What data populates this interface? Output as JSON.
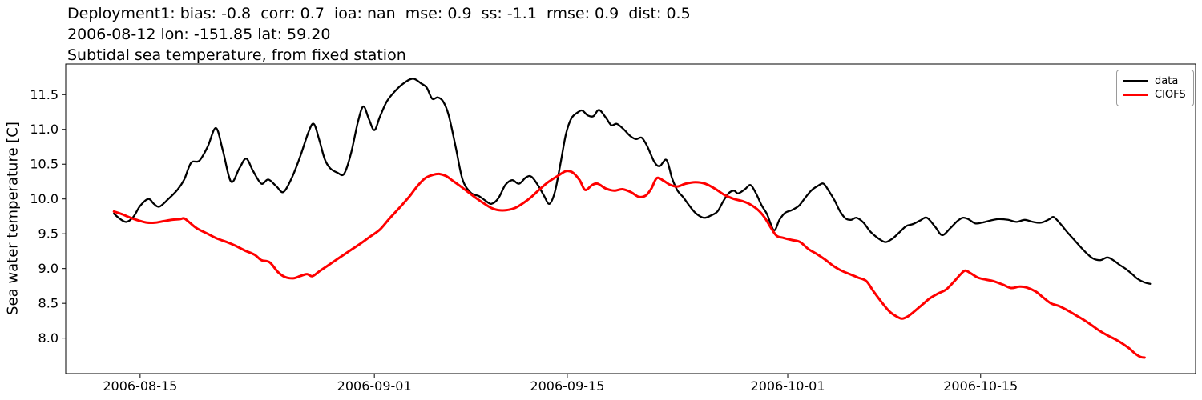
{
  "title": {
    "line1": "Deployment1: bias: -0.8  corr: 0.7  ioa: nan  mse: 0.9  ss: -1.1  rmse: 0.9  dist: 0.5",
    "line2": "2006-08-12 lon: -151.85 lat: 59.20",
    "line3": "Subtidal sea temperature, from fixed station"
  },
  "legend": {
    "entries": [
      {
        "label": "data",
        "color": "#000000",
        "linewidth": 2.3
      },
      {
        "label": "CIOFS",
        "color": "#ff0000",
        "linewidth": 3.0
      }
    ]
  },
  "colors": {
    "background": "#ffffff",
    "frame": "#000000",
    "tick": "#000000",
    "data_line": "#000000",
    "model_line": "#ff0000",
    "legend_border": "#9a9a9a"
  },
  "chart_data": {
    "type": "line",
    "title": "Subtidal sea temperature, from fixed station",
    "stats_header": "Deployment1: bias: -0.8  corr: 0.7  ioa: nan  mse: 0.9  ss: -1.1  rmse: 0.9  dist: 0.5",
    "station_header": "2006-08-12 lon: -151.85 lat: 59.20",
    "xlabel": "",
    "ylabel": "Sea water temperature [C]",
    "x_unit": "days since 2006-08-12",
    "grid": false,
    "legend_position": "upper right",
    "xlim": [
      -2.4,
      79.6
    ],
    "ylim": [
      7.49,
      11.94
    ],
    "x_ticks": [
      {
        "day": 3,
        "label": "2006-08-15"
      },
      {
        "day": 20,
        "label": "2006-09-01"
      },
      {
        "day": 34,
        "label": "2006-09-15"
      },
      {
        "day": 50,
        "label": "2006-10-01"
      },
      {
        "day": 64,
        "label": "2006-10-15"
      }
    ],
    "y_ticks": [
      {
        "value": 8.0,
        "label": "8.0"
      },
      {
        "value": 8.5,
        "label": "8.5"
      },
      {
        "value": 9.0,
        "label": "9.0"
      },
      {
        "value": 9.5,
        "label": "9.5"
      },
      {
        "value": 10.0,
        "label": "10.0"
      },
      {
        "value": 10.5,
        "label": "10.5"
      },
      {
        "value": 11.0,
        "label": "11.0"
      },
      {
        "value": 11.5,
        "label": "11.5"
      }
    ],
    "series": [
      {
        "name": "data",
        "color": "#000000",
        "linewidth": 2.3,
        "points": [
          [
            1.1,
            9.79
          ],
          [
            1.5,
            9.72
          ],
          [
            2.0,
            9.67
          ],
          [
            2.5,
            9.74
          ],
          [
            3.0,
            9.9
          ],
          [
            3.6,
            10.0
          ],
          [
            4.0,
            9.93
          ],
          [
            4.4,
            9.89
          ],
          [
            5.0,
            9.99
          ],
          [
            5.7,
            10.13
          ],
          [
            6.2,
            10.28
          ],
          [
            6.7,
            10.52
          ],
          [
            7.3,
            10.55
          ],
          [
            7.9,
            10.75
          ],
          [
            8.5,
            11.02
          ],
          [
            9.0,
            10.7
          ],
          [
            9.6,
            10.25
          ],
          [
            10.2,
            10.44
          ],
          [
            10.7,
            10.58
          ],
          [
            11.2,
            10.4
          ],
          [
            11.8,
            10.22
          ],
          [
            12.3,
            10.28
          ],
          [
            12.9,
            10.18
          ],
          [
            13.4,
            10.1
          ],
          [
            14.0,
            10.3
          ],
          [
            14.6,
            10.6
          ],
          [
            15.2,
            10.95
          ],
          [
            15.6,
            11.08
          ],
          [
            16.0,
            10.85
          ],
          [
            16.4,
            10.57
          ],
          [
            16.8,
            10.44
          ],
          [
            17.3,
            10.38
          ],
          [
            17.8,
            10.36
          ],
          [
            18.3,
            10.65
          ],
          [
            18.8,
            11.1
          ],
          [
            19.2,
            11.33
          ],
          [
            19.6,
            11.15
          ],
          [
            20.0,
            10.99
          ],
          [
            20.4,
            11.18
          ],
          [
            20.9,
            11.4
          ],
          [
            21.5,
            11.55
          ],
          [
            22.1,
            11.66
          ],
          [
            22.8,
            11.73
          ],
          [
            23.4,
            11.66
          ],
          [
            23.8,
            11.6
          ],
          [
            24.2,
            11.44
          ],
          [
            24.6,
            11.46
          ],
          [
            25.0,
            11.4
          ],
          [
            25.4,
            11.2
          ],
          [
            25.9,
            10.75
          ],
          [
            26.4,
            10.28
          ],
          [
            27.0,
            10.09
          ],
          [
            27.6,
            10.04
          ],
          [
            28.1,
            9.97
          ],
          [
            28.5,
            9.93
          ],
          [
            29.0,
            10.01
          ],
          [
            29.5,
            10.2
          ],
          [
            30.0,
            10.27
          ],
          [
            30.5,
            10.22
          ],
          [
            31.0,
            10.31
          ],
          [
            31.4,
            10.32
          ],
          [
            31.9,
            10.19
          ],
          [
            32.3,
            10.05
          ],
          [
            32.7,
            9.93
          ],
          [
            33.1,
            10.1
          ],
          [
            33.5,
            10.5
          ],
          [
            33.9,
            10.93
          ],
          [
            34.3,
            11.16
          ],
          [
            34.8,
            11.25
          ],
          [
            35.1,
            11.27
          ],
          [
            35.5,
            11.2
          ],
          [
            35.9,
            11.19
          ],
          [
            36.3,
            11.28
          ],
          [
            36.8,
            11.17
          ],
          [
            37.2,
            11.06
          ],
          [
            37.6,
            11.08
          ],
          [
            38.1,
            11.0
          ],
          [
            38.6,
            10.9
          ],
          [
            39.0,
            10.86
          ],
          [
            39.4,
            10.88
          ],
          [
            39.8,
            10.76
          ],
          [
            40.3,
            10.54
          ],
          [
            40.7,
            10.47
          ],
          [
            41.2,
            10.56
          ],
          [
            41.6,
            10.3
          ],
          [
            42.0,
            10.12
          ],
          [
            42.4,
            10.03
          ],
          [
            42.8,
            9.92
          ],
          [
            43.3,
            9.8
          ],
          [
            43.9,
            9.73
          ],
          [
            44.4,
            9.76
          ],
          [
            44.9,
            9.82
          ],
          [
            45.3,
            9.96
          ],
          [
            45.7,
            10.08
          ],
          [
            46.1,
            10.12
          ],
          [
            46.4,
            10.08
          ],
          [
            46.9,
            10.14
          ],
          [
            47.3,
            10.2
          ],
          [
            47.7,
            10.08
          ],
          [
            48.1,
            9.91
          ],
          [
            48.5,
            9.78
          ],
          [
            49.0,
            9.55
          ],
          [
            49.4,
            9.7
          ],
          [
            49.8,
            9.8
          ],
          [
            50.3,
            9.84
          ],
          [
            50.8,
            9.9
          ],
          [
            51.2,
            10.0
          ],
          [
            51.7,
            10.12
          ],
          [
            52.2,
            10.19
          ],
          [
            52.6,
            10.22
          ],
          [
            53.0,
            10.11
          ],
          [
            53.4,
            9.98
          ],
          [
            53.8,
            9.82
          ],
          [
            54.2,
            9.72
          ],
          [
            54.6,
            9.7
          ],
          [
            55.0,
            9.73
          ],
          [
            55.5,
            9.66
          ],
          [
            56.0,
            9.53
          ],
          [
            56.6,
            9.43
          ],
          [
            57.1,
            9.38
          ],
          [
            57.6,
            9.43
          ],
          [
            58.1,
            9.52
          ],
          [
            58.6,
            9.61
          ],
          [
            59.1,
            9.64
          ],
          [
            59.6,
            9.69
          ],
          [
            60.1,
            9.73
          ],
          [
            60.7,
            9.6
          ],
          [
            61.2,
            9.48
          ],
          [
            61.8,
            9.58
          ],
          [
            62.3,
            9.68
          ],
          [
            62.7,
            9.73
          ],
          [
            63.1,
            9.71
          ],
          [
            63.6,
            9.65
          ],
          [
            64.1,
            9.66
          ],
          [
            64.7,
            9.69
          ],
          [
            65.3,
            9.71
          ],
          [
            66.0,
            9.7
          ],
          [
            66.6,
            9.67
          ],
          [
            67.2,
            9.7
          ],
          [
            67.8,
            9.67
          ],
          [
            68.4,
            9.66
          ],
          [
            69.0,
            9.71
          ],
          [
            69.3,
            9.74
          ],
          [
            69.8,
            9.64
          ],
          [
            70.3,
            9.52
          ],
          [
            70.8,
            9.41
          ],
          [
            71.3,
            9.3
          ],
          [
            71.8,
            9.2
          ],
          [
            72.2,
            9.14
          ],
          [
            72.7,
            9.12
          ],
          [
            73.2,
            9.16
          ],
          [
            73.7,
            9.11
          ],
          [
            74.1,
            9.05
          ],
          [
            74.5,
            9.0
          ],
          [
            75.0,
            8.92
          ],
          [
            75.4,
            8.85
          ],
          [
            75.9,
            8.8
          ],
          [
            76.3,
            8.78
          ]
        ]
      },
      {
        "name": "CIOFS",
        "color": "#ff0000",
        "linewidth": 3.0,
        "points": [
          [
            1.1,
            9.82
          ],
          [
            1.7,
            9.78
          ],
          [
            2.3,
            9.73
          ],
          [
            2.9,
            9.69
          ],
          [
            3.5,
            9.66
          ],
          [
            4.1,
            9.66
          ],
          [
            4.7,
            9.68
          ],
          [
            5.3,
            9.7
          ],
          [
            5.9,
            9.71
          ],
          [
            6.2,
            9.72
          ],
          [
            6.6,
            9.66
          ],
          [
            7.1,
            9.58
          ],
          [
            7.9,
            9.5
          ],
          [
            8.6,
            9.43
          ],
          [
            9.3,
            9.38
          ],
          [
            9.9,
            9.33
          ],
          [
            10.6,
            9.26
          ],
          [
            11.3,
            9.2
          ],
          [
            11.8,
            9.12
          ],
          [
            12.4,
            9.09
          ],
          [
            13.0,
            8.95
          ],
          [
            13.5,
            8.88
          ],
          [
            14.1,
            8.86
          ],
          [
            14.6,
            8.89
          ],
          [
            15.1,
            8.92
          ],
          [
            15.5,
            8.89
          ],
          [
            16.0,
            8.96
          ],
          [
            16.6,
            9.04
          ],
          [
            17.2,
            9.12
          ],
          [
            17.8,
            9.2
          ],
          [
            18.4,
            9.28
          ],
          [
            19.0,
            9.36
          ],
          [
            19.7,
            9.46
          ],
          [
            20.4,
            9.56
          ],
          [
            21.1,
            9.72
          ],
          [
            21.9,
            9.89
          ],
          [
            22.6,
            10.05
          ],
          [
            23.1,
            10.18
          ],
          [
            23.7,
            10.3
          ],
          [
            24.3,
            10.35
          ],
          [
            24.7,
            10.36
          ],
          [
            25.2,
            10.33
          ],
          [
            25.7,
            10.26
          ],
          [
            26.2,
            10.19
          ],
          [
            26.8,
            10.1
          ],
          [
            27.4,
            10.01
          ],
          [
            28.0,
            9.93
          ],
          [
            28.5,
            9.87
          ],
          [
            29.0,
            9.84
          ],
          [
            29.6,
            9.84
          ],
          [
            30.2,
            9.87
          ],
          [
            30.8,
            9.94
          ],
          [
            31.4,
            10.03
          ],
          [
            32.0,
            10.14
          ],
          [
            32.6,
            10.24
          ],
          [
            33.3,
            10.33
          ],
          [
            33.9,
            10.4
          ],
          [
            34.4,
            10.38
          ],
          [
            34.9,
            10.27
          ],
          [
            35.3,
            10.13
          ],
          [
            35.8,
            10.2
          ],
          [
            36.2,
            10.22
          ],
          [
            36.8,
            10.15
          ],
          [
            37.4,
            10.12
          ],
          [
            38.0,
            10.14
          ],
          [
            38.6,
            10.1
          ],
          [
            39.2,
            10.03
          ],
          [
            39.7,
            10.05
          ],
          [
            40.1,
            10.15
          ],
          [
            40.5,
            10.3
          ],
          [
            41.0,
            10.26
          ],
          [
            41.5,
            10.2
          ],
          [
            42.0,
            10.18
          ],
          [
            42.6,
            10.22
          ],
          [
            43.3,
            10.24
          ],
          [
            44.0,
            10.22
          ],
          [
            44.7,
            10.15
          ],
          [
            45.4,
            10.06
          ],
          [
            46.1,
            10.0
          ],
          [
            46.7,
            9.97
          ],
          [
            47.2,
            9.93
          ],
          [
            47.8,
            9.85
          ],
          [
            48.3,
            9.74
          ],
          [
            48.8,
            9.58
          ],
          [
            49.2,
            9.47
          ],
          [
            49.7,
            9.44
          ],
          [
            50.3,
            9.41
          ],
          [
            50.9,
            9.38
          ],
          [
            51.5,
            9.28
          ],
          [
            52.1,
            9.21
          ],
          [
            52.7,
            9.13
          ],
          [
            53.3,
            9.04
          ],
          [
            53.9,
            8.97
          ],
          [
            54.5,
            8.92
          ],
          [
            55.1,
            8.87
          ],
          [
            55.7,
            8.82
          ],
          [
            56.2,
            8.68
          ],
          [
            56.8,
            8.52
          ],
          [
            57.4,
            8.38
          ],
          [
            58.0,
            8.3
          ],
          [
            58.3,
            8.28
          ],
          [
            58.7,
            8.31
          ],
          [
            59.1,
            8.37
          ],
          [
            59.7,
            8.47
          ],
          [
            60.3,
            8.57
          ],
          [
            60.9,
            8.64
          ],
          [
            61.5,
            8.7
          ],
          [
            62.1,
            8.82
          ],
          [
            62.6,
            8.93
          ],
          [
            62.9,
            8.97
          ],
          [
            63.3,
            8.93
          ],
          [
            63.8,
            8.87
          ],
          [
            64.4,
            8.84
          ],
          [
            64.9,
            8.82
          ],
          [
            65.6,
            8.77
          ],
          [
            66.2,
            8.72
          ],
          [
            66.8,
            8.74
          ],
          [
            67.3,
            8.73
          ],
          [
            68.0,
            8.67
          ],
          [
            68.5,
            8.59
          ],
          [
            69.1,
            8.5
          ],
          [
            69.7,
            8.46
          ],
          [
            70.3,
            8.4
          ],
          [
            70.9,
            8.33
          ],
          [
            71.5,
            8.26
          ],
          [
            72.1,
            8.18
          ],
          [
            72.6,
            8.11
          ],
          [
            73.2,
            8.04
          ],
          [
            73.8,
            7.98
          ],
          [
            74.3,
            7.92
          ],
          [
            74.8,
            7.85
          ],
          [
            75.2,
            7.78
          ],
          [
            75.6,
            7.73
          ],
          [
            75.9,
            7.72
          ]
        ]
      }
    ]
  }
}
